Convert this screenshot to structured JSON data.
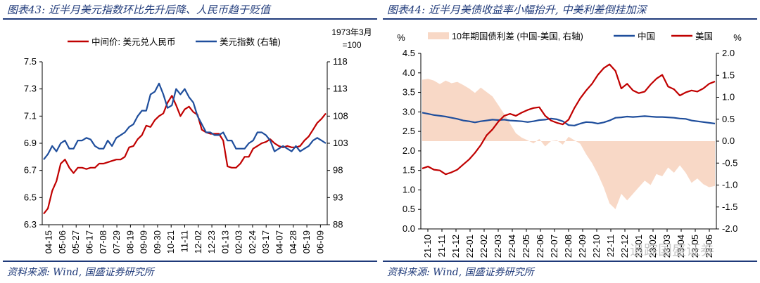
{
  "left": {
    "title": "图表43: 近半月美元指数环比先升后降、人民币趋于贬值",
    "source": "资料来源: Wind, 国盛证券研究所",
    "colors": {
      "rmb": "#c00000",
      "dxy": "#1f4e9c"
    },
    "chart_data": {
      "type": "line",
      "x_ticks": [
        "04-15",
        "05-06",
        "05-27",
        "06-17",
        "07-08",
        "07-29",
        "08-19",
        "09-09",
        "09-30",
        "10-21",
        "11-11",
        "12-02",
        "12-23",
        "01-13",
        "02-03",
        "02-24",
        "03-17",
        "04-07",
        "04-28",
        "05-19",
        "06-09"
      ],
      "left_axis": {
        "ticks": [
          "6.3",
          "6.5",
          "6.7",
          "6.9",
          "7.1",
          "7.3",
          "7.5"
        ],
        "range": [
          6.3,
          7.5
        ]
      },
      "right_axis": {
        "ticks": [
          "88",
          "93",
          "98",
          "103",
          "108",
          "113",
          "118"
        ],
        "range": [
          88,
          118
        ],
        "note": "1973年3月 =100"
      },
      "series": [
        {
          "name": "中间价: 美元兑人民币",
          "axis": "left",
          "color": "#c00000",
          "values": [
            6.38,
            6.42,
            6.55,
            6.62,
            6.75,
            6.78,
            6.72,
            6.68,
            6.72,
            6.72,
            6.71,
            6.72,
            6.72,
            6.75,
            6.75,
            6.76,
            6.77,
            6.78,
            6.78,
            6.8,
            6.87,
            6.88,
            6.93,
            6.96,
            7.03,
            7.02,
            7.07,
            7.1,
            7.12,
            7.2,
            7.25,
            7.18,
            7.1,
            7.15,
            7.17,
            7.13,
            7.11,
            7.0,
            6.98,
            6.97,
            6.97,
            6.97,
            6.92,
            6.73,
            6.72,
            6.72,
            6.75,
            6.8,
            6.8,
            6.86,
            6.88,
            6.9,
            6.91,
            6.93,
            6.9,
            6.88,
            6.87,
            6.88,
            6.87,
            6.87,
            6.88,
            6.92,
            6.95,
            7.0,
            7.05,
            7.08,
            7.12
          ]
        },
        {
          "name": "美元指数 (右轴)",
          "axis": "right",
          "color": "#1f4e9c",
          "values": [
            100,
            101,
            102.5,
            101.5,
            103,
            103.5,
            102,
            102,
            103.5,
            103.5,
            104,
            103.7,
            102.5,
            102,
            102,
            103.5,
            102.5,
            104,
            104.5,
            105,
            106,
            106.5,
            108,
            109,
            109,
            112,
            112.5,
            114,
            112,
            109.5,
            110,
            113,
            112,
            113,
            111.5,
            110.5,
            108,
            106.5,
            105,
            105,
            104.5,
            104.5,
            105,
            103.5,
            103.5,
            102,
            102,
            102,
            103,
            103.5,
            105,
            105,
            104.5,
            103.5,
            101.5,
            102,
            102.5,
            102,
            101.5,
            102.5,
            101.5,
            102,
            102.5,
            103.5,
            104,
            103.5,
            103
          ]
        }
      ]
    }
  },
  "right": {
    "title": "图表44: 近半月美债收益率小幅抬升, 中美利差倒挂加深",
    "source": "资料来源: Wind, 国盛证券研究所",
    "colors": {
      "cn": "#1f4e9c",
      "us": "#c00000",
      "spread": "#f8d8c6"
    },
    "chart_data": {
      "type": "line",
      "unit_left": "%",
      "unit_right": "%",
      "x_ticks": [
        "21-10",
        "21-11",
        "21-12",
        "22-01",
        "22-02",
        "22-03",
        "22-04",
        "22-05",
        "22-06",
        "22-07",
        "22-08",
        "22-09",
        "22-10",
        "22-11",
        "22-12",
        "23-01",
        "23-02",
        "23-03",
        "23-04",
        "23-05",
        "23-06"
      ],
      "left_axis": {
        "ticks": [
          "0.0",
          "0.5",
          "1.0",
          "1.5",
          "2.0",
          "2.5",
          "3.0",
          "3.5",
          "4.0",
          "4.5"
        ],
        "range": [
          0,
          4.5
        ]
      },
      "right_axis": {
        "ticks": [
          "-2.0",
          "-1.5",
          "-1.0",
          "-0.5",
          "0.0",
          "0.5",
          "1.0",
          "1.5",
          "2.0"
        ],
        "range": [
          -2,
          2
        ]
      },
      "series": [
        {
          "name": "10年期国债利差 (中国-美国, 右轴)",
          "axis": "right",
          "type": "area",
          "color": "#f8d8c6",
          "values": [
            1.4,
            1.42,
            1.38,
            1.3,
            1.38,
            1.32,
            1.35,
            1.28,
            1.2,
            1.1,
            1.22,
            1.12,
            1.02,
            0.82,
            0.62,
            0.4,
            0.18,
            0.08,
            0.02,
            -0.05,
            0.05,
            -0.12,
            0.0,
            0.02,
            -0.08,
            0.1,
            0.02,
            -0.06,
            -0.3,
            -0.5,
            -0.75,
            -1.05,
            -1.42,
            -1.55,
            -1.2,
            -1.35,
            -1.2,
            -1.05,
            -0.9,
            -1.0,
            -0.75,
            -0.8,
            -0.6,
            -0.72,
            -0.55,
            -0.72,
            -0.95,
            -0.85,
            -0.98,
            -1.05,
            -1.02
          ]
        },
        {
          "name": "中国",
          "axis": "left",
          "type": "line",
          "color": "#1f4e9c",
          "values": [
            2.98,
            2.95,
            2.92,
            2.9,
            2.88,
            2.85,
            2.82,
            2.78,
            2.76,
            2.73,
            2.76,
            2.78,
            2.8,
            2.79,
            2.8,
            2.78,
            2.77,
            2.76,
            2.74,
            2.76,
            2.79,
            2.8,
            2.83,
            2.81,
            2.76,
            2.66,
            2.65,
            2.7,
            2.74,
            2.73,
            2.7,
            2.73,
            2.78,
            2.85,
            2.86,
            2.88,
            2.87,
            2.88,
            2.89,
            2.88,
            2.87,
            2.87,
            2.86,
            2.85,
            2.83,
            2.82,
            2.78,
            2.76,
            2.74,
            2.72,
            2.7
          ]
        },
        {
          "name": "美国",
          "axis": "left",
          "type": "line",
          "color": "#c00000",
          "values": [
            1.55,
            1.6,
            1.52,
            1.5,
            1.4,
            1.45,
            1.52,
            1.65,
            1.78,
            1.95,
            2.15,
            2.4,
            2.55,
            2.75,
            2.9,
            2.95,
            2.9,
            2.98,
            3.05,
            3.1,
            3.12,
            2.9,
            2.78,
            2.72,
            2.68,
            2.8,
            3.1,
            3.35,
            3.55,
            3.72,
            3.95,
            4.12,
            4.22,
            4.05,
            3.6,
            3.72,
            3.55,
            3.48,
            3.52,
            3.7,
            3.85,
            3.95,
            3.65,
            3.58,
            3.42,
            3.5,
            3.55,
            3.52,
            3.6,
            3.72,
            3.78
          ]
        }
      ]
    }
  },
  "watermark": "追踪国盛证券"
}
